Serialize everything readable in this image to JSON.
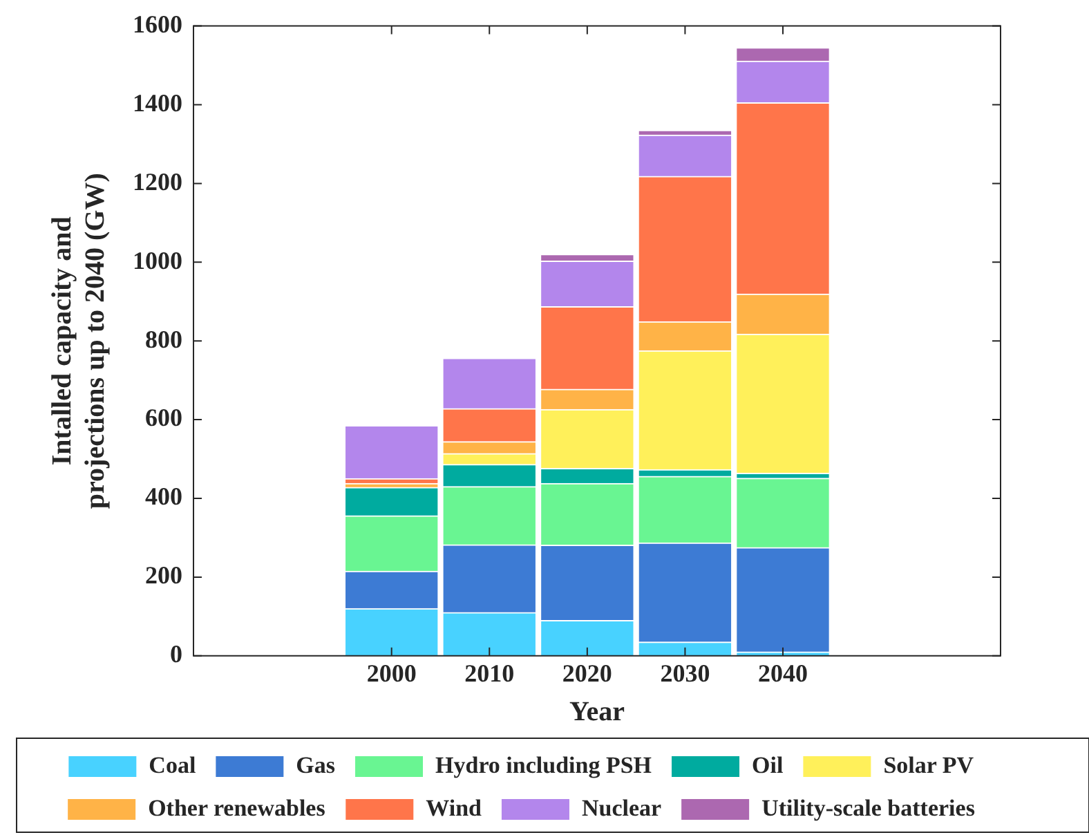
{
  "chart_data": {
    "type": "bar",
    "stacked": true,
    "xlabel": "Year",
    "ylabel": "Intalled capacity and projections up to 2040 (GW)",
    "categories": [
      "2000",
      "2010",
      "2020",
      "2030",
      "2040"
    ],
    "ylim": [
      0,
      1600
    ],
    "yticks": [
      0,
      200,
      400,
      600,
      800,
      1000,
      1200,
      1400,
      1600
    ],
    "grid": false,
    "legend": "bottom",
    "series": [
      {
        "name": "Coal",
        "color": "#48d2ff",
        "values": [
          120,
          110,
          90,
          35,
          10
        ]
      },
      {
        "name": "Gas",
        "color": "#3d7bd4",
        "values": [
          95,
          172,
          191,
          252,
          265
        ]
      },
      {
        "name": "Hydro including PSH",
        "color": "#69f592",
        "values": [
          141,
          148,
          157,
          169,
          176
        ]
      },
      {
        "name": "Oil",
        "color": "#00ab9f",
        "values": [
          72,
          56,
          38,
          17,
          13
        ]
      },
      {
        "name": "Solar PV",
        "color": "#fff05a",
        "values": [
          0,
          28,
          150,
          302,
          353
        ]
      },
      {
        "name": "Other renewables",
        "color": "#ffb347",
        "values": [
          10,
          30,
          51,
          74,
          102
        ]
      },
      {
        "name": "Wind",
        "color": "#ff754a",
        "values": [
          12,
          84,
          210,
          369,
          486
        ]
      },
      {
        "name": "Nuclear",
        "color": "#b386ec",
        "values": [
          135,
          128,
          116,
          105,
          106
        ]
      },
      {
        "name": "Utility-scale batteries",
        "color": "#ac68b0",
        "values": [
          0,
          0,
          17,
          12,
          34
        ]
      }
    ]
  }
}
